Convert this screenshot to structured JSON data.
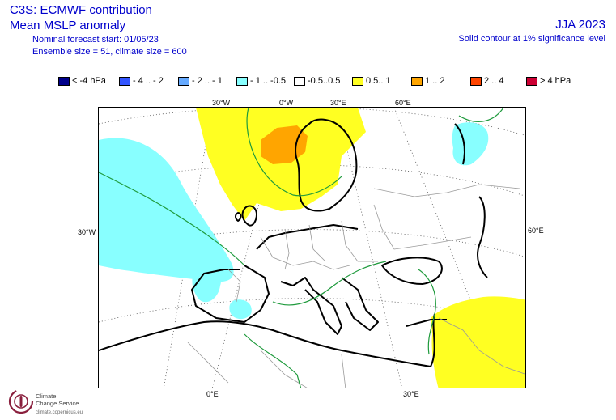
{
  "header": {
    "title_line1": "C3S: ECMWF contribution",
    "title_line2": "Mean MSLP anomaly",
    "subtitle_line1": "Nominal forecast start: 01/05/23",
    "subtitle_line2": "Ensemble size = 51, climate size = 600",
    "season": "JJA 2023",
    "significance_note": "Solid contour at 1% significance level"
  },
  "legend": [
    {
      "label": "< -4 hPa",
      "color": "#00008b"
    },
    {
      "label": "- 4 .. - 2",
      "color": "#3355ff"
    },
    {
      "label": "- 2 .. - 1",
      "color": "#66aaff"
    },
    {
      "label": "- 1 .. -0.5",
      "color": "#88ffff"
    },
    {
      "label": "-0.5..0.5",
      "color": "#ffffff"
    },
    {
      "label": "0.5.. 1",
      "color": "#ffff22"
    },
    {
      "label": "1 .. 2",
      "color": "#ffa500"
    },
    {
      "label": "2 .. 4",
      "color": "#ff4500"
    },
    {
      "label": "> 4 hPa",
      "color": "#cc0033"
    }
  ],
  "grid_labels": {
    "top_30w": "30°W",
    "top_0w": "0°W",
    "top_30e": "30°E",
    "top_60e": "60°E",
    "left_30w": "30°W",
    "right_60e": "60°E",
    "bottom_0e": "0°E",
    "bottom_30e": "30°E"
  },
  "anomaly_regions": [
    {
      "category": "0.5..1",
      "area": "North Atlantic / Scandinavia",
      "color": "#ffff22"
    },
    {
      "category": "1..2",
      "area": "Norwegian Sea",
      "color": "#ffa500"
    },
    {
      "category": "-1..-0.5",
      "area": "Central Atlantic west of Iberia",
      "color": "#88ffff"
    },
    {
      "category": "-1..-0.5",
      "area": "Western Mediterranean",
      "color": "#88ffff"
    },
    {
      "category": "-1..-0.5",
      "area": "Northwest Russia",
      "color": "#88ffff"
    },
    {
      "category": "0.5..1",
      "area": "Middle East",
      "color": "#ffff22"
    }
  ],
  "logo": {
    "name_line1": "Climate",
    "name_line2": "Change Service",
    "url": "climate.copernicus.eu"
  }
}
